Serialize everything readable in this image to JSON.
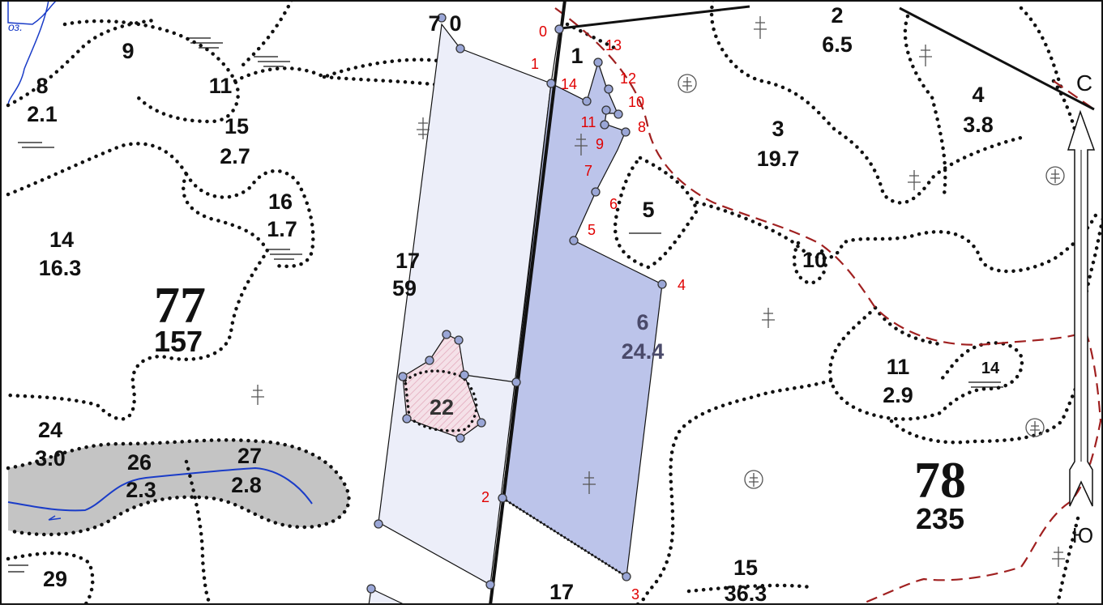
{
  "map": {
    "colors": {
      "background": "#ffffff",
      "selected_parcel": "#bcc4ea",
      "light_parcel": "#eceef9",
      "hatched_area": "#f5e1e8",
      "wetland": "#c4c4c4",
      "river": "#1a3cc8",
      "boundary_dash": "#a02020",
      "point_labels": "#e00000"
    },
    "quarters": [
      {
        "number": "77",
        "area": "157"
      },
      {
        "number": "78",
        "area": "235"
      }
    ],
    "lake_label": "оз.",
    "compass": {
      "north": "С",
      "south": "Ю"
    },
    "subcompartments": [
      {
        "number": "9",
        "area": ""
      },
      {
        "number": "8",
        "area": "2.1"
      },
      {
        "number": "11",
        "area": ""
      },
      {
        "number": "15",
        "area": "2.7"
      },
      {
        "number": "16",
        "area": "1.7"
      },
      {
        "number": "14",
        "area": "16.3"
      },
      {
        "number": "24",
        "area": "3.0"
      },
      {
        "number": "26",
        "area": "2.3"
      },
      {
        "number": "27",
        "area": "2.8"
      },
      {
        "number": "29",
        "area": ""
      },
      {
        "number": "17",
        "area": "59"
      },
      {
        "number": "7",
        "area": "0"
      },
      {
        "number": "1",
        "area": ""
      },
      {
        "number": "2",
        "area": "6.5"
      },
      {
        "number": "3",
        "area": "19.7"
      },
      {
        "number": "4",
        "area": "3.8"
      },
      {
        "number": "5",
        "area": ""
      },
      {
        "number": "10",
        "area": ""
      },
      {
        "number": "11",
        "area": "2.9"
      },
      {
        "number": "14",
        "area": ""
      },
      {
        "number": "15",
        "area": "36.3"
      },
      {
        "number": "17",
        "area": ""
      },
      {
        "number": "22",
        "area": ""
      },
      {
        "number": "6",
        "area": "24.4"
      }
    ],
    "boundary_points": [
      "0",
      "1",
      "2",
      "3",
      "4",
      "5",
      "6",
      "7",
      "8",
      "9",
      "10",
      "11",
      "12",
      "13",
      "14"
    ]
  }
}
